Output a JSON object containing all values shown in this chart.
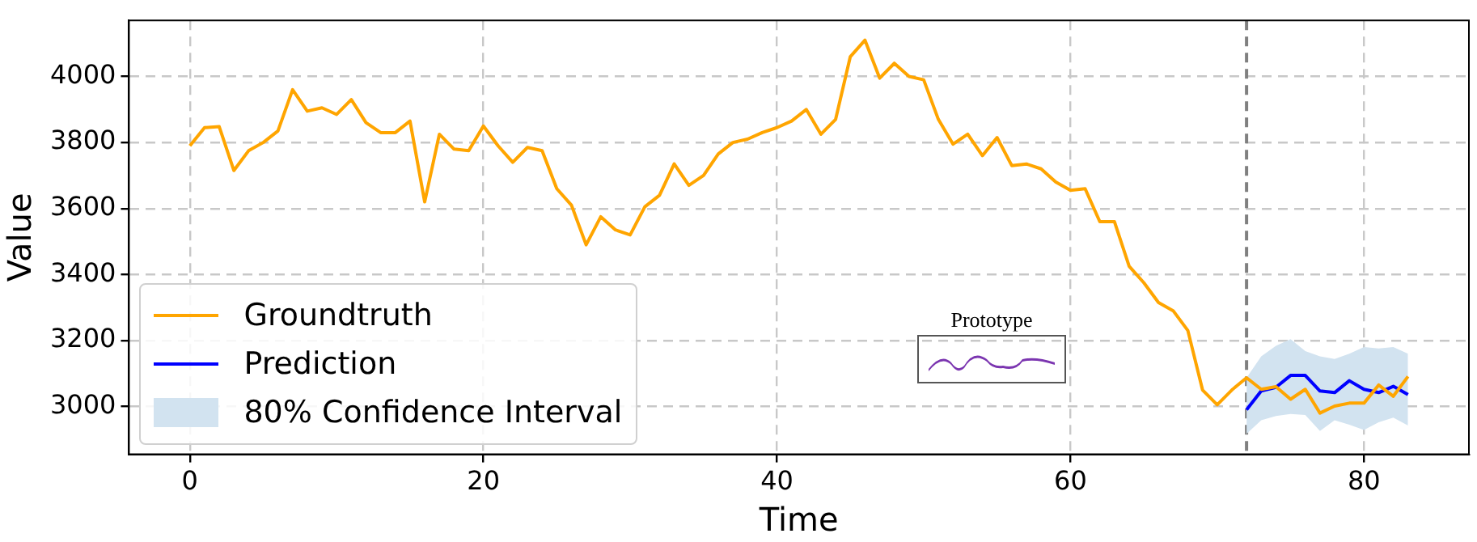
{
  "chart_data": {
    "type": "line",
    "xlabel": "Time",
    "ylabel": "Value",
    "x": [
      0,
      1,
      2,
      3,
      4,
      5,
      6,
      7,
      8,
      9,
      10,
      11,
      12,
      13,
      14,
      15,
      16,
      17,
      18,
      19,
      20,
      21,
      22,
      23,
      24,
      25,
      26,
      27,
      28,
      29,
      30,
      31,
      32,
      33,
      34,
      35,
      36,
      37,
      38,
      39,
      40,
      41,
      42,
      43,
      44,
      45,
      46,
      47,
      48,
      49,
      50,
      51,
      52,
      53,
      54,
      55,
      56,
      57,
      58,
      59,
      60,
      61,
      62,
      63,
      64,
      65,
      66,
      67,
      68,
      69,
      70,
      71,
      72,
      73,
      74,
      75,
      76,
      77,
      78,
      79,
      80,
      81,
      82,
      83
    ],
    "series": [
      {
        "name": "Groundtruth",
        "color": "#ffa500",
        "values": [
          3790,
          3845,
          3848,
          3715,
          3775,
          3800,
          3835,
          3960,
          3895,
          3905,
          3885,
          3930,
          3860,
          3830,
          3830,
          3865,
          3620,
          3825,
          3780,
          3775,
          3850,
          3790,
          3740,
          3785,
          3775,
          3660,
          3610,
          3490,
          3575,
          3535,
          3520,
          3605,
          3640,
          3735,
          3670,
          3700,
          3765,
          3800,
          3810,
          3830,
          3845,
          3865,
          3900,
          3825,
          3870,
          4060,
          4110,
          3995,
          4040,
          4000,
          3990,
          3870,
          3795,
          3825,
          3760,
          3815,
          3730,
          3735,
          3720,
          3680,
          3655,
          3660,
          3560,
          3560,
          3425,
          3375,
          3315,
          3290,
          3230,
          3050,
          3005,
          3050,
          3087,
          3052,
          3060,
          3022,
          3052,
          2980,
          3001,
          3010,
          3010,
          3065,
          3031,
          3091
        ]
      },
      {
        "name": "Prediction",
        "color": "#0000ff",
        "x": [
          72,
          73,
          74,
          75,
          76,
          77,
          78,
          79,
          80,
          81,
          82,
          83
        ],
        "values": [
          2990,
          3047,
          3058,
          3094,
          3094,
          3047,
          3042,
          3078,
          3052,
          3042,
          3061,
          3036
        ]
      },
      {
        "name": "80% Confidence Interval",
        "type": "area",
        "color": "#d2e3f0",
        "x": [
          72,
          73,
          74,
          75,
          76,
          77,
          78,
          79,
          80,
          81,
          82,
          83
        ],
        "values": [
          null,
          null,
          null,
          null,
          null,
          null,
          null,
          null,
          null,
          null,
          null,
          null
        ],
        "lower": [
          2917,
          2958,
          2971,
          2977,
          2974,
          2926,
          2958,
          2945,
          2929,
          2952,
          2966,
          2942
        ],
        "upper": [
          3087,
          3152,
          3184,
          3204,
          3168,
          3152,
          3144,
          3160,
          3180,
          3176,
          3180,
          3160
        ]
      }
    ],
    "xlim": [
      -4.15,
      87.15
    ],
    "xticks": [
      0,
      20,
      40,
      60,
      80
    ],
    "ylim": [
      2855,
      4170
    ],
    "yticks": [
      3000,
      3200,
      3400,
      3600,
      3800,
      4000
    ],
    "ref_lines": [
      {
        "axis": "x",
        "value": 72,
        "color": "#808080",
        "line_style": "dashed"
      }
    ],
    "annotations": [
      "Prototype"
    ],
    "grid": true,
    "legend": "bottom left",
    "marker": "none",
    "line_style": "solid"
  }
}
